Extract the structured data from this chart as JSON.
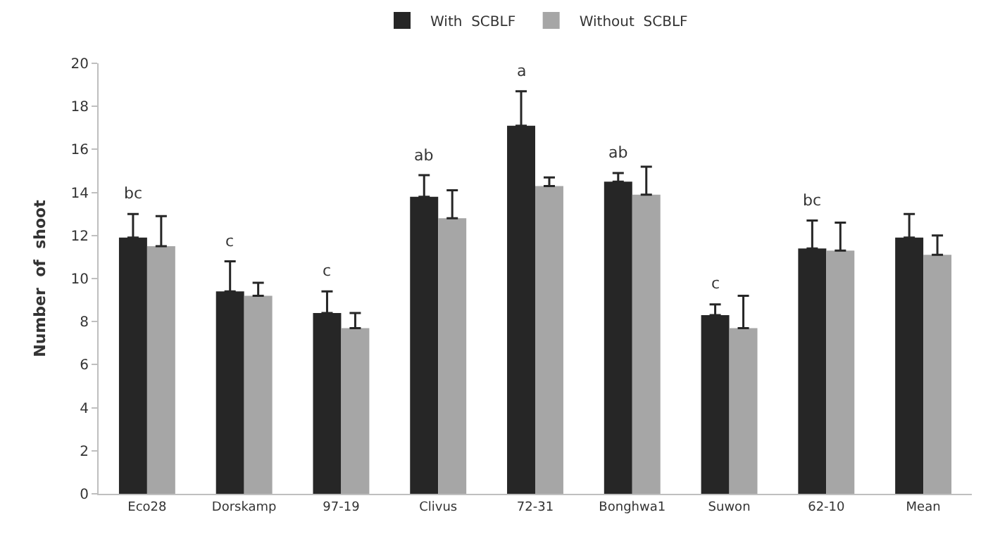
{
  "chart_data": {
    "type": "bar",
    "ylabel": "Number  of  shoot",
    "categories": [
      "Eco28",
      "Dorskamp",
      "97-19",
      "Clivus",
      "72-31",
      "Bonghwa1",
      "Suwon",
      "62-10",
      "Mean"
    ],
    "series": [
      {
        "name": "With  SCBLF",
        "color": "#262626",
        "values": [
          11.9,
          9.4,
          8.4,
          13.8,
          17.1,
          14.5,
          8.3,
          11.4,
          11.9
        ],
        "errors": [
          [
            11.9,
            13.0
          ],
          [
            9.4,
            10.8
          ],
          [
            8.4,
            9.4
          ],
          [
            13.8,
            14.8
          ],
          [
            17.1,
            18.7
          ],
          [
            14.5,
            14.9
          ],
          [
            8.3,
            8.8
          ],
          [
            11.4,
            12.7
          ],
          [
            11.9,
            13.0
          ]
        ],
        "value_labels": [
          "bc",
          "c",
          "c",
          "ab",
          "a",
          "ab",
          "c",
          "bc",
          null
        ]
      },
      {
        "name": "Without  SCBLF",
        "color": "#a6a6a6",
        "values": [
          11.5,
          9.2,
          7.7,
          12.8,
          14.3,
          13.9,
          7.7,
          11.3,
          11.1
        ],
        "errors": [
          [
            11.5,
            12.9
          ],
          [
            9.2,
            9.8
          ],
          [
            7.7,
            8.4
          ],
          [
            12.8,
            14.1
          ],
          [
            14.3,
            14.7
          ],
          [
            13.9,
            15.2
          ],
          [
            7.7,
            9.2
          ],
          [
            11.3,
            12.6
          ],
          [
            11.1,
            12.0
          ]
        ]
      }
    ],
    "ylim": [
      0,
      20
    ],
    "yticks": [
      0,
      2,
      4,
      6,
      8,
      10,
      12,
      14,
      16,
      18,
      20
    ],
    "legend": "top"
  }
}
